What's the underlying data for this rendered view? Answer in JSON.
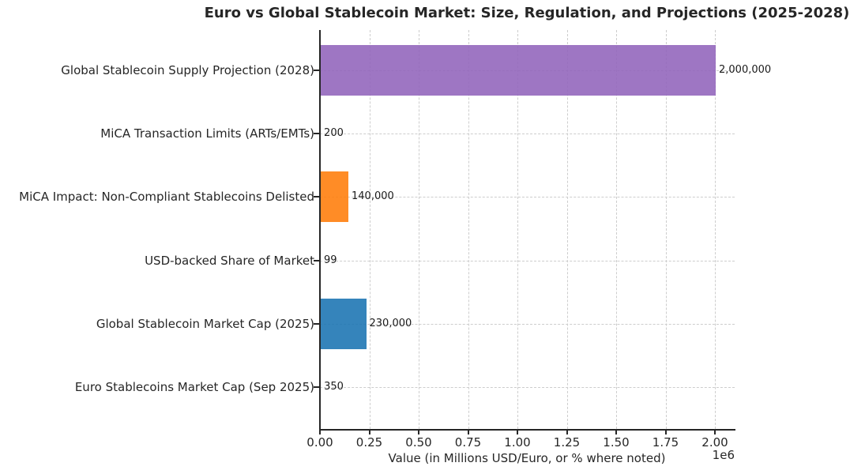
{
  "chart_data": {
    "type": "bar",
    "orientation": "horizontal",
    "title": "Euro vs Global Stablecoin Market: Size, Regulation, and Projections (2025-2028)",
    "xlabel": "Value (in Millions USD/Euro, or % where noted)",
    "ylabel": "",
    "xlim": [
      0,
      2100000
    ],
    "x_tick_values": [
      0,
      250000,
      500000,
      750000,
      1000000,
      1250000,
      1500000,
      1750000,
      2000000
    ],
    "x_tick_labels": [
      "0.00",
      "0.25",
      "0.50",
      "0.75",
      "1.00",
      "1.25",
      "1.50",
      "1.75",
      "2.00"
    ],
    "offset_text": "1e6",
    "grid": "both, dashed, light-gray",
    "legend": "none",
    "bars": [
      {
        "label": "Global Stablecoin Supply Projection (2028)",
        "value": 2000000,
        "value_label": "2,000,000",
        "color": "#9467bd"
      },
      {
        "label": "MiCA Transaction Limits (ARTs/EMTs)",
        "value": 200,
        "value_label": "200",
        "color": null
      },
      {
        "label": "MiCA Impact: Non-Compliant Stablecoins Delisted",
        "value": 140000,
        "value_label": "140,000",
        "color": "#ff7f0e"
      },
      {
        "label": "USD-backed Share of Market",
        "value": 99,
        "value_label": "99",
        "color": null
      },
      {
        "label": "Global Stablecoin Market Cap (2025)",
        "value": 230000,
        "value_label": "230,000",
        "color": "#1f77b4"
      },
      {
        "label": "Euro Stablecoins Market Cap (Sep 2025)",
        "value": 350,
        "value_label": "350",
        "color": null
      }
    ]
  }
}
